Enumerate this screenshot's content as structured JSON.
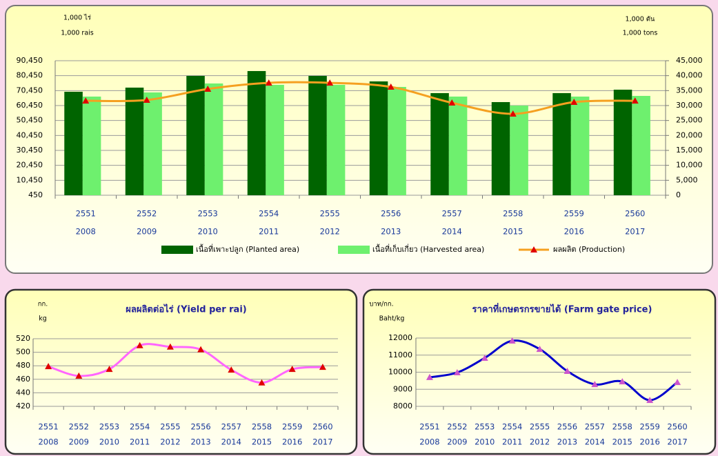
{
  "chart_data": [
    {
      "type": "bar_line",
      "y_unit": [
        "1,000 ไร่",
        "1,000 rais"
      ],
      "y2_unit": [
        "1,000 ตัน",
        "1,000 tons"
      ],
      "categories": [
        [
          "2551",
          "2008"
        ],
        [
          "2552",
          "2009"
        ],
        [
          "2553",
          "2010"
        ],
        [
          "2554",
          "2011"
        ],
        [
          "2555",
          "2012"
        ],
        [
          "2556",
          "2013"
        ],
        [
          "2557",
          "2014"
        ],
        [
          "2558",
          "2015"
        ],
        [
          "2559",
          "2016"
        ],
        [
          "2560",
          "2017"
        ]
      ],
      "series": [
        {
          "name": "เนื้อที่เพาะปลูก  (Planted area)",
          "type": "bar",
          "color": "#006400",
          "values": [
            69680,
            72450,
            80300,
            83530,
            80300,
            76600,
            68760,
            62760,
            68760,
            71070
          ]
        },
        {
          "name": "เนื้อที่เก็บเกี่ยว  (Harvested area)",
          "type": "bar",
          "color": "#6ef06e",
          "values": [
            66450,
            69220,
            75220,
            74300,
            74300,
            72900,
            66450,
            60450,
            66450,
            66910
          ]
        },
        {
          "name": "ผลผลิต  (Production)",
          "type": "line",
          "axis": "y2",
          "color": "#f5a020",
          "marker_color": "#e00000",
          "values": [
            31600,
            31850,
            35540,
            37600,
            37600,
            36230,
            30920,
            27230,
            31150,
            31600
          ]
        }
      ],
      "ylim": [
        450,
        90450
      ],
      "yticks": [
        450,
        {
          "value": 10450,
          "label": "10,450"
        },
        {
          "value": 20450,
          "label": "20,450"
        },
        {
          "value": 30450,
          "label": "30,450"
        },
        {
          "value": 40450,
          "label": "40,450"
        },
        {
          "value": 50450,
          "label": "50,450"
        },
        {
          "value": 60450,
          "label": "60,450"
        },
        {
          "value": 70450,
          "label": "70,450"
        },
        {
          "value": 80450,
          "label": "80,450"
        },
        {
          "value": 90450,
          "label": "90,450"
        }
      ],
      "y2lim": [
        0,
        45000
      ],
      "y2ticks": [
        0,
        {
          "value": 5000,
          "label": "5,000"
        },
        {
          "value": 10000,
          "label": "10,000"
        },
        {
          "value": 15000,
          "label": "15,000"
        },
        {
          "value": 20000,
          "label": "20,000"
        },
        {
          "value": 25000,
          "label": "25,000"
        },
        {
          "value": 30000,
          "label": "30,000"
        },
        {
          "value": 35000,
          "label": "35,000"
        },
        {
          "value": 40000,
          "label": "40,000"
        },
        {
          "value": 45000,
          "label": "45,000"
        }
      ],
      "grid": true
    },
    {
      "type": "line",
      "title": "ผลผลิตต่อไร่ (Yield per rai)",
      "y_unit": [
        "กก.",
        "kg"
      ],
      "categories": [
        [
          "2551",
          "2008"
        ],
        [
          "2552",
          "2009"
        ],
        [
          "2553",
          "2010"
        ],
        [
          "2554",
          "2011"
        ],
        [
          "2555",
          "2012"
        ],
        [
          "2556",
          "2013"
        ],
        [
          "2557",
          "2014"
        ],
        [
          "2558",
          "2015"
        ],
        [
          "2559",
          "2016"
        ],
        [
          "2560",
          "2017"
        ]
      ],
      "series": [
        {
          "color": "#ff66ff",
          "marker_color": "#e00000",
          "values": [
            479,
            465,
            475,
            510,
            508,
            504,
            474,
            455,
            475,
            478
          ]
        }
      ],
      "ylim": [
        420,
        520
      ],
      "yticks": [
        420,
        440,
        460,
        480,
        500,
        520
      ],
      "grid": true
    },
    {
      "type": "line",
      "title": "ราคาที่เกษตรกรขายได้  (Farm gate price)",
      "y_unit": [
        "บาท/กก.",
        "Baht/kg"
      ],
      "categories": [
        [
          "2551",
          "2008"
        ],
        [
          "2552",
          "2009"
        ],
        [
          "2553",
          "2010"
        ],
        [
          "2554",
          "2011"
        ],
        [
          "2555",
          "2012"
        ],
        [
          "2556",
          "2013"
        ],
        [
          "2557",
          "2014"
        ],
        [
          "2558",
          "2015"
        ],
        [
          "2559",
          "2016"
        ],
        [
          "2560",
          "2017"
        ]
      ],
      "series": [
        {
          "color": "#0000cc",
          "marker_color": "#cc55cc",
          "values": [
            9700,
            9980,
            10830,
            11840,
            11350,
            10060,
            9290,
            9450,
            8360,
            9410
          ]
        }
      ],
      "ylim": [
        8000,
        12000
      ],
      "yticks": [
        8000,
        9000,
        10000,
        11000,
        12000
      ],
      "grid": true
    }
  ]
}
